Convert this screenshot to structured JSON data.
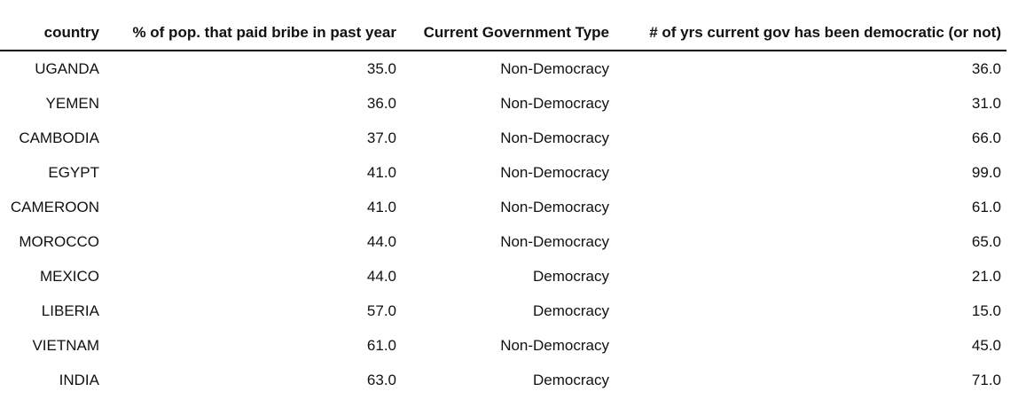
{
  "table": {
    "columns": [
      "country",
      "% of pop. that paid bribe in past year",
      "Current Government Type",
      "# of yrs current gov has been democratic (or not)"
    ],
    "rows": [
      [
        "UGANDA",
        "35.0",
        "Non-Democracy",
        "36.0"
      ],
      [
        "YEMEN",
        "36.0",
        "Non-Democracy",
        "31.0"
      ],
      [
        "CAMBODIA",
        "37.0",
        "Non-Democracy",
        "66.0"
      ],
      [
        "EGYPT",
        "41.0",
        "Non-Democracy",
        "99.0"
      ],
      [
        "CAMEROON",
        "41.0",
        "Non-Democracy",
        "61.0"
      ],
      [
        "MOROCCO",
        "44.0",
        "Non-Democracy",
        "65.0"
      ],
      [
        "MEXICO",
        "44.0",
        "Democracy",
        "21.0"
      ],
      [
        "LIBERIA",
        "57.0",
        "Democracy",
        "15.0"
      ],
      [
        "VIETNAM",
        "61.0",
        "Non-Democracy",
        "45.0"
      ],
      [
        "INDIA",
        "63.0",
        "Democracy",
        "71.0"
      ]
    ]
  }
}
